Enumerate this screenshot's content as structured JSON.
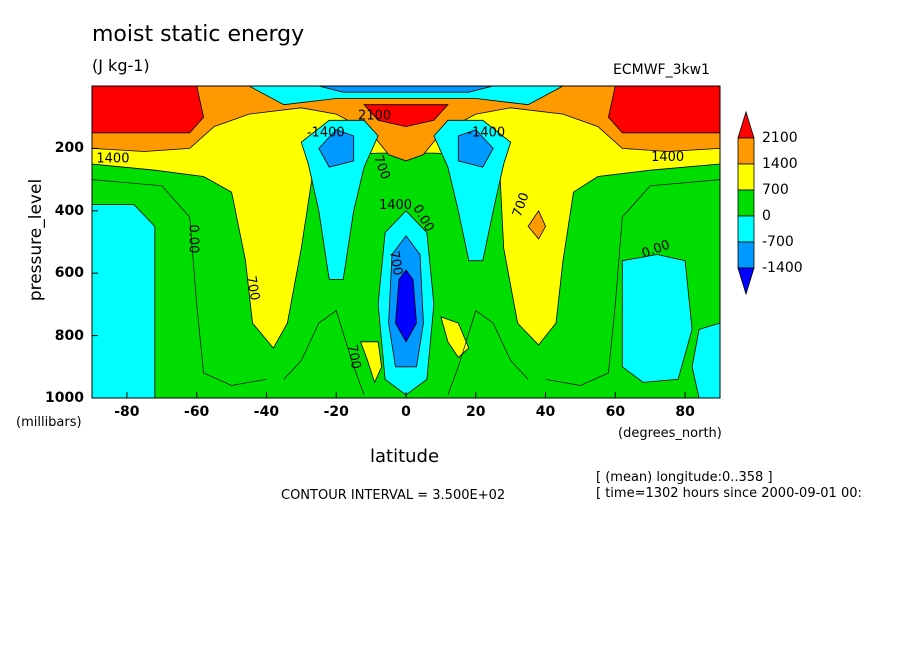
{
  "chart_data": {
    "type": "heatmap",
    "title": "moist static energy",
    "units": "(J kg-1)",
    "dataset": "ECMWF_3kw1",
    "xlabel": "latitude",
    "ylabel": "pressure_level",
    "x_unit": "(degrees_north)",
    "y_unit": "(millibars)",
    "xlim": [
      -90,
      90
    ],
    "ylim": [
      1000,
      0
    ],
    "x_ticks": [
      "-80",
      "-60",
      "-40",
      "-20",
      "0",
      "20",
      "40",
      "60",
      "80"
    ],
    "y_ticks": [
      "200",
      "400",
      "600",
      "800",
      "1000"
    ],
    "colorbar_levels": [
      "2100",
      "1400",
      "700",
      "0",
      "-700",
      "-1400"
    ],
    "colorbar_colors": [
      "#ff0000",
      "#ff9900",
      "#ffff00",
      "#00dd00",
      "#00ffff",
      "#0099ff",
      "#0000ff"
    ],
    "contour_labels": [
      "1400",
      "1400",
      "2100",
      "700",
      "700",
      "700",
      "700",
      "700",
      "0.00",
      "0.00",
      "0.00",
      "-1400",
      "-1400",
      "1400"
    ],
    "contour_interval": "CONTOUR INTERVAL = 3.500E+02",
    "info_lines": [
      "[ (mean) longitude:0..358 ]",
      "[ time=1302 hours since 2000-09-01 00:"
    ]
  }
}
